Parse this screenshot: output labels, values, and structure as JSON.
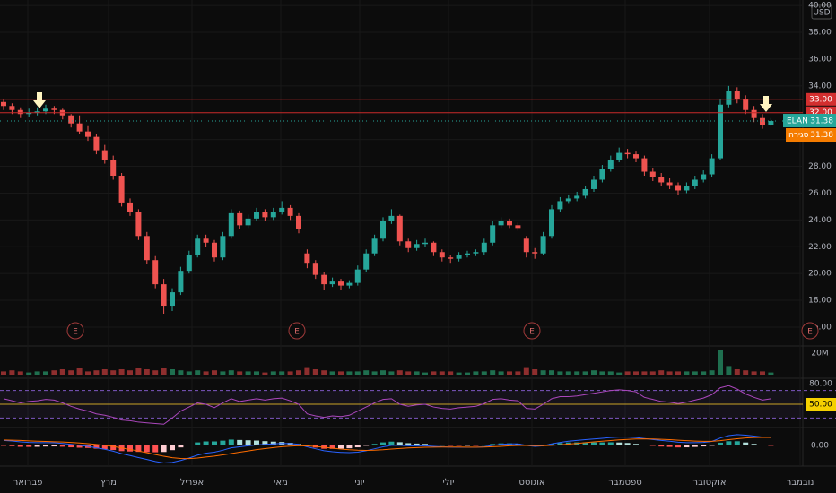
{
  "chart_data": {
    "type": "candlestick",
    "symbol": "ELAN",
    "currency": "USD",
    "up_color": "#26a69a",
    "down_color": "#ef5350",
    "x_labels": [
      "פברואר",
      "מרץ",
      "אפריל",
      "מאי",
      "יוני",
      "יולי",
      "אוגוסט",
      "ספטמבר",
      "אוקטובר",
      "נובמבר"
    ],
    "ylim": [
      14.66,
      40.41
    ],
    "yticks": [
      {
        "value": 16,
        "label": "16.00"
      },
      {
        "value": 18,
        "label": "18.00"
      },
      {
        "value": 20,
        "label": "20.00"
      },
      {
        "value": 22,
        "label": "22.00"
      },
      {
        "value": 24,
        "label": "24.00"
      },
      {
        "value": 26,
        "label": "26.00"
      },
      {
        "value": 28,
        "label": "28.00"
      },
      {
        "value": 30,
        "label": "30.00"
      },
      {
        "value": 32,
        "label": "32.00"
      },
      {
        "value": 34,
        "label": "34.00"
      },
      {
        "value": 36,
        "label": "36.00"
      },
      {
        "value": 38,
        "label": "38.00"
      },
      {
        "value": 40,
        "label": "40.00"
      }
    ],
    "price_lines": [
      {
        "value": 33,
        "label": "33.00"
      },
      {
        "value": 32,
        "label": "32.00"
      }
    ],
    "last_price": {
      "value": 31.38,
      "label": "31.38"
    },
    "close_label": "סגירה",
    "earnings": [
      "E",
      "E",
      "E",
      "E"
    ],
    "ohlc": [
      [
        32.8,
        33.0,
        32.2,
        32.5
      ],
      [
        32.5,
        32.7,
        31.9,
        32.2
      ],
      [
        32.2,
        32.4,
        31.6,
        31.9
      ],
      [
        31.9,
        32.3,
        31.7,
        32.0
      ],
      [
        32.0,
        32.4,
        31.8,
        32.1
      ],
      [
        32.1,
        32.6,
        31.9,
        32.3
      ],
      [
        32.3,
        32.5,
        31.9,
        32.2
      ],
      [
        32.2,
        32.3,
        31.5,
        31.8
      ],
      [
        31.8,
        31.9,
        30.9,
        31.2
      ],
      [
        31.2,
        31.8,
        30.4,
        30.6
      ],
      [
        30.6,
        31.0,
        29.9,
        30.2
      ],
      [
        30.2,
        30.4,
        28.9,
        29.2
      ],
      [
        29.2,
        29.6,
        28.2,
        28.5
      ],
      [
        28.5,
        28.8,
        27.0,
        27.3
      ],
      [
        27.3,
        27.5,
        25.0,
        25.3
      ],
      [
        25.3,
        25.6,
        24.3,
        24.6
      ],
      [
        24.6,
        24.8,
        22.5,
        22.8
      ],
      [
        22.8,
        23.1,
        20.7,
        21.0
      ],
      [
        21.0,
        21.3,
        18.9,
        19.2
      ],
      [
        19.2,
        19.6,
        17.0,
        17.6
      ],
      [
        17.6,
        18.9,
        17.2,
        18.6
      ],
      [
        18.6,
        20.5,
        18.4,
        20.2
      ],
      [
        20.2,
        21.7,
        20.0,
        21.4
      ],
      [
        21.4,
        22.9,
        21.2,
        22.6
      ],
      [
        22.6,
        22.9,
        22.0,
        22.3
      ],
      [
        22.3,
        22.5,
        20.9,
        21.2
      ],
      [
        21.2,
        23.1,
        21.0,
        22.8
      ],
      [
        22.8,
        24.8,
        22.6,
        24.5
      ],
      [
        24.5,
        24.7,
        23.3,
        23.6
      ],
      [
        23.6,
        24.4,
        23.4,
        24.1
      ],
      [
        24.1,
        24.9,
        23.9,
        24.6
      ],
      [
        24.6,
        24.8,
        23.9,
        24.2
      ],
      [
        24.2,
        24.9,
        24.0,
        24.6
      ],
      [
        24.6,
        25.4,
        24.4,
        24.9
      ],
      [
        24.9,
        25.1,
        24.0,
        24.3
      ],
      [
        24.3,
        24.5,
        23.0,
        23.3
      ],
      [
        21.5,
        21.8,
        20.4,
        20.8
      ],
      [
        20.8,
        21.0,
        19.6,
        19.9
      ],
      [
        19.9,
        20.1,
        18.8,
        19.2
      ],
      [
        19.2,
        19.7,
        19.0,
        19.4
      ],
      [
        19.4,
        19.6,
        18.8,
        19.1
      ],
      [
        19.1,
        19.5,
        18.9,
        19.3
      ],
      [
        19.3,
        20.6,
        19.1,
        20.3
      ],
      [
        20.3,
        21.8,
        20.1,
        21.5
      ],
      [
        21.5,
        22.9,
        21.3,
        22.6
      ],
      [
        22.6,
        24.2,
        22.4,
        23.9
      ],
      [
        23.9,
        24.8,
        23.7,
        24.3
      ],
      [
        24.3,
        24.4,
        22.1,
        22.4
      ],
      [
        22.4,
        22.6,
        21.6,
        21.9
      ],
      [
        21.9,
        22.5,
        21.7,
        22.2
      ],
      [
        22.2,
        22.6,
        22.0,
        22.3
      ],
      [
        22.3,
        22.4,
        21.3,
        21.6
      ],
      [
        21.6,
        21.8,
        20.9,
        21.2
      ],
      [
        21.2,
        21.4,
        20.8,
        21.1
      ],
      [
        21.1,
        21.6,
        20.9,
        21.4
      ],
      [
        21.4,
        21.7,
        21.2,
        21.5
      ],
      [
        21.5,
        21.8,
        21.3,
        21.6
      ],
      [
        21.6,
        22.6,
        21.4,
        22.3
      ],
      [
        22.3,
        23.9,
        22.1,
        23.6
      ],
      [
        23.6,
        24.2,
        23.4,
        23.9
      ],
      [
        23.9,
        24.1,
        23.4,
        23.6
      ],
      [
        23.6,
        23.8,
        23.2,
        23.4
      ],
      [
        22.6,
        22.8,
        21.2,
        21.6
      ],
      [
        21.6,
        21.9,
        21.1,
        21.5
      ],
      [
        21.5,
        23.1,
        21.4,
        22.8
      ],
      [
        22.8,
        25.1,
        22.6,
        24.8
      ],
      [
        24.8,
        25.7,
        24.6,
        25.4
      ],
      [
        25.4,
        25.9,
        25.2,
        25.6
      ],
      [
        25.6,
        26.1,
        25.4,
        25.8
      ],
      [
        25.8,
        26.5,
        25.6,
        26.3
      ],
      [
        26.3,
        27.3,
        26.1,
        27.0
      ],
      [
        27.0,
        28.1,
        26.8,
        27.8
      ],
      [
        27.8,
        28.8,
        27.6,
        28.5
      ],
      [
        28.5,
        29.4,
        28.3,
        29.0
      ],
      [
        29.0,
        29.3,
        28.6,
        28.9
      ],
      [
        28.9,
        29.1,
        28.3,
        28.6
      ],
      [
        28.6,
        28.8,
        27.3,
        27.6
      ],
      [
        27.6,
        27.9,
        26.9,
        27.2
      ],
      [
        27.2,
        27.5,
        26.5,
        26.8
      ],
      [
        26.8,
        27.1,
        26.3,
        26.6
      ],
      [
        26.6,
        26.8,
        25.9,
        26.2
      ],
      [
        26.2,
        26.8,
        26.0,
        26.5
      ],
      [
        26.5,
        27.3,
        26.3,
        27.0
      ],
      [
        27.0,
        27.7,
        26.8,
        27.4
      ],
      [
        27.4,
        28.9,
        27.2,
        28.6
      ],
      [
        28.6,
        33.0,
        28.5,
        32.6
      ],
      [
        32.6,
        34.0,
        32.4,
        33.6
      ],
      [
        33.6,
        33.9,
        32.7,
        33.0
      ],
      [
        33.0,
        33.3,
        31.9,
        32.2
      ],
      [
        32.2,
        32.5,
        31.3,
        31.6
      ],
      [
        31.6,
        31.9,
        30.8,
        31.1
      ],
      [
        31.1,
        31.6,
        31.0,
        31.38
      ]
    ],
    "volume": {
      "values": [
        3,
        4,
        3,
        2,
        3,
        3,
        4,
        5,
        4,
        6,
        3,
        4,
        5,
        4,
        5,
        4,
        6,
        5,
        4,
        6,
        5,
        4,
        3,
        4,
        3,
        4,
        3,
        4,
        3,
        3,
        3,
        2,
        3,
        3,
        3,
        4,
        7,
        5,
        4,
        3,
        3,
        3,
        3,
        4,
        3,
        4,
        3,
        4,
        3,
        3,
        2,
        3,
        3,
        3,
        2,
        2,
        3,
        3,
        4,
        3,
        3,
        3,
        7,
        5,
        4,
        4,
        3,
        3,
        3,
        3,
        4,
        3,
        3,
        2,
        3,
        3,
        3,
        3,
        4,
        3,
        3,
        3,
        3,
        3,
        4,
        23,
        8,
        5,
        4,
        3,
        3,
        2
      ],
      "ylim": [
        0,
        25
      ],
      "yticks": [
        {
          "value": 20,
          "label": "20M"
        }
      ]
    },
    "rsi": {
      "values": [
        58,
        55,
        52,
        54,
        55,
        57,
        56,
        52,
        47,
        43,
        40,
        36,
        34,
        31,
        27,
        26,
        24,
        23,
        22,
        21,
        30,
        40,
        46,
        52,
        50,
        45,
        52,
        58,
        54,
        56,
        58,
        56,
        58,
        59,
        55,
        50,
        36,
        33,
        31,
        33,
        32,
        34,
        40,
        46,
        52,
        57,
        58,
        50,
        47,
        49,
        50,
        46,
        44,
        43,
        45,
        46,
        47,
        51,
        57,
        58,
        56,
        55,
        44,
        43,
        50,
        58,
        61,
        61,
        62,
        64,
        66,
        68,
        70,
        71,
        70,
        68,
        60,
        57,
        54,
        53,
        51,
        53,
        56,
        59,
        64,
        74,
        77,
        72,
        65,
        60,
        56,
        58
      ],
      "color": "#ab47bc",
      "ylim": [
        18.7,
        83.9
      ],
      "yticks": [
        {
          "value": 80,
          "label": "80.00"
        },
        {
          "value": 50,
          "label": "50.00"
        }
      ],
      "bands": [
        70,
        30
      ]
    },
    "macd": {
      "macd": [
        0.5,
        0.45,
        0.35,
        0.3,
        0.28,
        0.28,
        0.26,
        0.2,
        0.1,
        0,
        -0.1,
        -0.25,
        -0.4,
        -0.6,
        -0.85,
        -1.05,
        -1.25,
        -1.45,
        -1.65,
        -1.8,
        -1.75,
        -1.55,
        -1.3,
        -1.0,
        -0.8,
        -0.7,
        -0.5,
        -0.25,
        -0.15,
        -0.05,
        0.05,
        0.1,
        0.15,
        0.2,
        0.18,
        0.1,
        -0.15,
        -0.35,
        -0.55,
        -0.65,
        -0.72,
        -0.75,
        -0.7,
        -0.55,
        -0.35,
        -0.15,
        0.0,
        0.0,
        -0.05,
        -0.05,
        -0.05,
        -0.1,
        -0.15,
        -0.18,
        -0.2,
        -0.2,
        -0.2,
        -0.15,
        0.0,
        0.1,
        0.15,
        0.15,
        0.0,
        -0.1,
        -0.05,
        0.15,
        0.3,
        0.42,
        0.5,
        0.58,
        0.65,
        0.72,
        0.8,
        0.85,
        0.85,
        0.8,
        0.7,
        0.6,
        0.5,
        0.42,
        0.32,
        0.28,
        0.28,
        0.3,
        0.4,
        0.75,
        1.0,
        1.1,
        1.05,
        0.95,
        0.85,
        0.8
      ],
      "signal": [
        0.55,
        0.53,
        0.5,
        0.46,
        0.43,
        0.4,
        0.37,
        0.34,
        0.3,
        0.24,
        0.17,
        0.09,
        0.0,
        -0.12,
        -0.26,
        -0.42,
        -0.58,
        -0.76,
        -0.94,
        -1.12,
        -1.26,
        -1.34,
        -1.36,
        -1.3,
        -1.2,
        -1.1,
        -0.98,
        -0.84,
        -0.7,
        -0.57,
        -0.44,
        -0.33,
        -0.23,
        -0.14,
        -0.08,
        -0.04,
        -0.06,
        -0.12,
        -0.2,
        -0.29,
        -0.38,
        -0.45,
        -0.5,
        -0.52,
        -0.5,
        -0.45,
        -0.38,
        -0.32,
        -0.27,
        -0.23,
        -0.2,
        -0.18,
        -0.17,
        -0.17,
        -0.17,
        -0.18,
        -0.18,
        -0.17,
        -0.14,
        -0.1,
        -0.05,
        -0.01,
        -0.01,
        -0.03,
        -0.03,
        0.0,
        0.06,
        0.13,
        0.2,
        0.28,
        0.35,
        0.42,
        0.49,
        0.56,
        0.61,
        0.65,
        0.66,
        0.65,
        0.62,
        0.58,
        0.53,
        0.48,
        0.44,
        0.41,
        0.41,
        0.48,
        0.58,
        0.68,
        0.76,
        0.8,
        0.81,
        0.81
      ],
      "histogram": [
        -0.05,
        -0.08,
        -0.15,
        -0.16,
        -0.15,
        -0.12,
        -0.11,
        -0.14,
        -0.2,
        -0.24,
        -0.27,
        -0.34,
        -0.4,
        -0.48,
        -0.59,
        -0.63,
        -0.67,
        -0.69,
        -0.71,
        -0.68,
        -0.49,
        -0.21,
        0.06,
        0.3,
        0.4,
        0.4,
        0.48,
        0.59,
        0.55,
        0.52,
        0.49,
        0.43,
        0.38,
        0.34,
        0.26,
        0.14,
        -0.09,
        -0.23,
        -0.35,
        -0.36,
        -0.34,
        -0.3,
        -0.2,
        -0.03,
        0.15,
        0.3,
        0.38,
        0.32,
        0.22,
        0.18,
        0.15,
        0.08,
        0.02,
        -0.01,
        -0.03,
        -0.02,
        -0.02,
        0.02,
        0.14,
        0.2,
        0.2,
        0.16,
        0.01,
        -0.07,
        -0.02,
        0.15,
        0.24,
        0.29,
        0.3,
        0.3,
        0.3,
        0.3,
        0.31,
        0.29,
        0.24,
        0.15,
        0.04,
        -0.05,
        -0.12,
        -0.16,
        -0.21,
        -0.2,
        -0.16,
        -0.11,
        -0.01,
        0.27,
        0.42,
        0.42,
        0.29,
        0.15,
        0.04,
        -0.01
      ],
      "macd_color": "#2962ff",
      "signal_color": "#ff6d00",
      "ylim": [
        -1.85,
        1.55
      ],
      "yticks": [
        {
          "value": 0,
          "label": "0.00"
        }
      ]
    }
  }
}
